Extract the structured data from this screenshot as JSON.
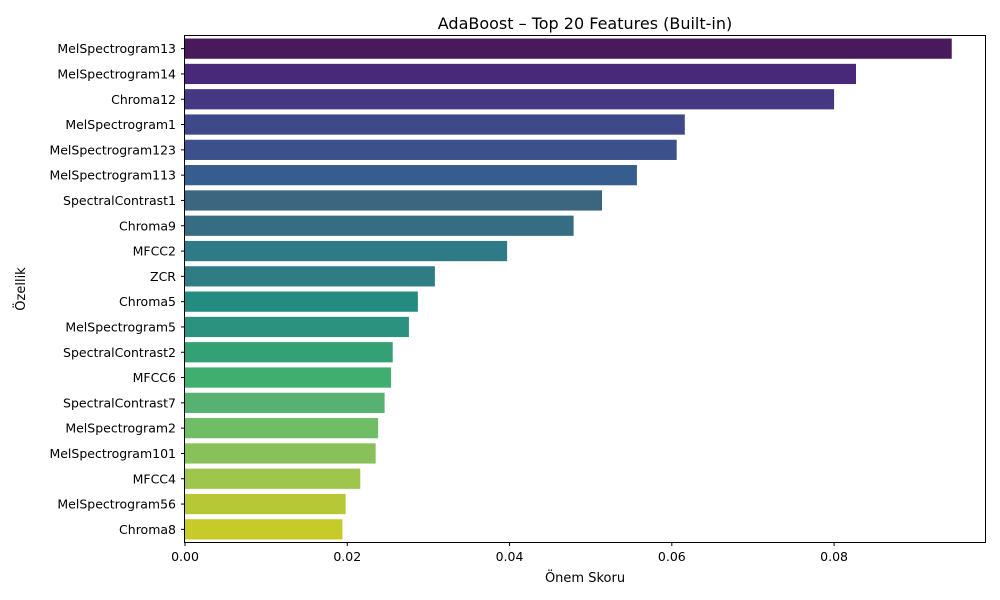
{
  "chart_data": {
    "type": "bar",
    "orientation": "horizontal",
    "title": "AdaBoost – Top 20 Features (Built-in)",
    "xlabel": "Önem Skoru",
    "ylabel": "Özellik",
    "xlim": [
      0,
      0.0986
    ],
    "xticks": [
      0.0,
      0.02,
      0.04,
      0.06,
      0.08
    ],
    "xtick_labels": [
      "0.00",
      "0.02",
      "0.04",
      "0.06",
      "0.08"
    ],
    "palette": "viridis",
    "grid": false,
    "legend": "none",
    "categories": [
      "MelSpectrogram13",
      "MelSpectrogram14",
      "Chroma12",
      "MelSpectrogram1",
      "MelSpectrogram123",
      "MelSpectrogram113",
      "SpectralContrast1",
      "Chroma9",
      "MFCC2",
      "ZCR",
      "Chroma5",
      "MelSpectrogram5",
      "SpectralContrast2",
      "MFCC6",
      "SpectralContrast7",
      "MelSpectrogram2",
      "MelSpectrogram101",
      "MFCC4",
      "MelSpectrogram56",
      "Chroma8"
    ],
    "values": [
      0.0945,
      0.0827,
      0.08,
      0.0616,
      0.0606,
      0.0557,
      0.0514,
      0.0479,
      0.0397,
      0.0308,
      0.0287,
      0.0276,
      0.0256,
      0.0254,
      0.0246,
      0.0238,
      0.0235,
      0.0216,
      0.0198,
      0.0194
    ],
    "colors": [
      "#481a5c",
      "#482878",
      "#453781",
      "#3f4889",
      "#3c508b",
      "#365d8d",
      "#3c6580",
      "#366d82",
      "#2e7a87",
      "#2f7d83",
      "#248b80",
      "#2c9280",
      "#33a075",
      "#3fae6f",
      "#57b170",
      "#6fbd65",
      "#88c05a",
      "#9ec64c",
      "#b6c835",
      "#c6cb2a"
    ]
  }
}
